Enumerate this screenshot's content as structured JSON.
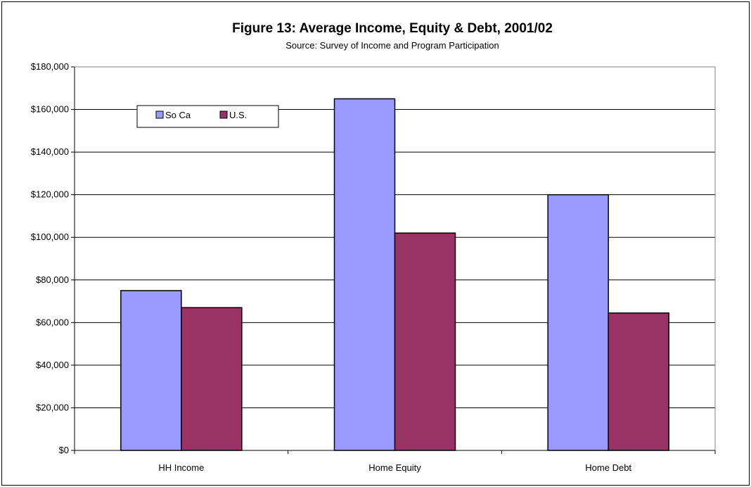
{
  "chart_data": {
    "type": "bar",
    "title": "Figure 13: Average Income, Equity & Debt, 2001/02",
    "subtitle": "Source: Survey of Income and Program Participation",
    "xlabel": "",
    "ylabel": "",
    "categories": [
      "HH Income",
      "Home Equity",
      "Home Debt"
    ],
    "series": [
      {
        "name": "So Ca",
        "values": [
          75000,
          165000,
          120000
        ],
        "color": "#9999ff"
      },
      {
        "name": "U.S.",
        "values": [
          67000,
          102000,
          64500
        ],
        "color": "#993366"
      }
    ],
    "ylim": [
      0,
      180000
    ],
    "ytick_step": 20000,
    "ytick_labels": [
      "$0",
      "$20,000",
      "$40,000",
      "$60,000",
      "$80,000",
      "$100,000",
      "$120,000",
      "$140,000",
      "$160,000",
      "$180,000"
    ],
    "grid": true,
    "legend_position": "top-left"
  }
}
